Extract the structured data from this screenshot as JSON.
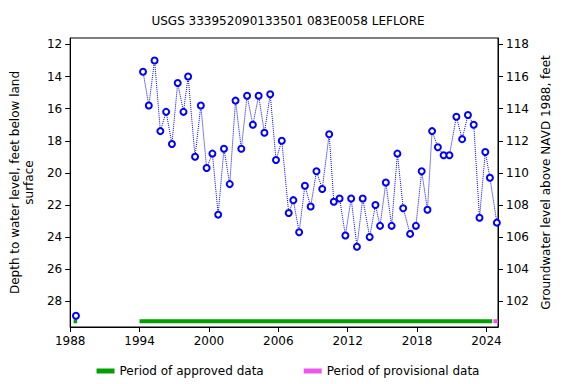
{
  "chart_data": {
    "type": "line",
    "title": "USGS 333952090133501 083E0058 LEFLORE",
    "y_label": "Depth to water level, feet below land\nsurface",
    "y2_label": "Groundwater level above NAVD 1988, feet",
    "color": "#0000ff",
    "marker": "circle",
    "line_style": "dotted",
    "grid": false,
    "legend": "bottom",
    "x": [
      1988.5,
      1991.0,
      1994.3,
      1994.8,
      1995.3,
      1995.8,
      1996.3,
      1996.8,
      1997.3,
      1997.8,
      1998.2,
      1998.8,
      1999.3,
      1999.8,
      2000.3,
      2000.8,
      2001.3,
      2001.8,
      2002.3,
      2002.8,
      2003.3,
      2003.8,
      2004.3,
      2004.8,
      2005.3,
      2005.8,
      2006.3,
      2006.9,
      2007.3,
      2007.8,
      2008.3,
      2008.8,
      2009.3,
      2009.8,
      2010.4,
      2010.8,
      2011.3,
      2011.8,
      2012.3,
      2012.8,
      2013.3,
      2013.9,
      2014.4,
      2014.8,
      2015.3,
      2015.8,
      2016.3,
      2016.8,
      2017.4,
      2017.9,
      2018.4,
      2018.9,
      2019.3,
      2019.8,
      2020.3,
      2020.8,
      2021.4,
      2021.9,
      2022.4,
      2022.9,
      2023.4,
      2023.9,
      2024.3,
      2024.9
    ],
    "values": [
      28.9,
      null,
      13.7,
      15.8,
      13.0,
      17.4,
      16.2,
      18.2,
      14.4,
      16.2,
      14.0,
      19.0,
      15.8,
      19.7,
      18.8,
      22.6,
      18.5,
      20.7,
      15.5,
      18.5,
      15.2,
      17.0,
      15.2,
      17.5,
      15.1,
      19.2,
      18.0,
      22.5,
      21.7,
      23.7,
      20.8,
      22.1,
      19.9,
      21.0,
      17.6,
      21.8,
      21.6,
      23.9,
      21.6,
      24.6,
      21.6,
      24.0,
      22.0,
      23.3,
      20.6,
      23.3,
      18.8,
      22.2,
      23.8,
      23.3,
      19.9,
      22.3,
      17.4,
      18.4,
      18.9,
      18.9,
      16.5,
      17.9,
      16.4,
      17.0,
      22.8,
      18.7,
      20.3,
      23.1
    ],
    "xlim": [
      1988,
      2025
    ],
    "xticks": [
      1988,
      1994,
      2000,
      2006,
      2012,
      2018,
      2024
    ],
    "ylim": [
      11.6,
      29.6
    ],
    "yticks": [
      12,
      14,
      16,
      18,
      20,
      22,
      24,
      26,
      28
    ],
    "y2lim": [
      100.4,
      118.4
    ],
    "y2ticks": [
      102,
      104,
      106,
      108,
      110,
      112,
      114,
      116,
      118
    ],
    "periods": [
      {
        "name": "Period of approved data",
        "color": "#00a000",
        "ranges": [
          [
            1988.3,
            1988.6
          ],
          [
            1994.0,
            2024.5
          ]
        ]
      },
      {
        "name": "Period of provisional data",
        "color": "#ee55ee",
        "ranges": [
          [
            2024.6,
            2025.0
          ]
        ]
      }
    ]
  }
}
